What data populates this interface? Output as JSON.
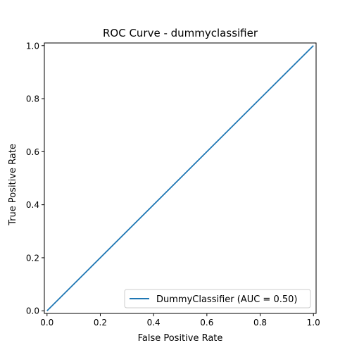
{
  "colors": {
    "background": "#ffffff",
    "axis": "#000000",
    "series": "#1f77b4",
    "legend_border": "#cccccc"
  },
  "chart_data": {
    "type": "line",
    "title": "ROC Curve - dummyclassifier",
    "xlabel": "False Positive Rate",
    "ylabel": "True Positive Rate",
    "xlim": [
      -0.01,
      1.01
    ],
    "ylim": [
      -0.01,
      1.01
    ],
    "x_ticks": [
      0.0,
      0.2,
      0.4,
      0.6,
      0.8,
      1.0
    ],
    "y_ticks": [
      0.0,
      0.2,
      0.4,
      0.6,
      0.8,
      1.0
    ],
    "x_tick_labels": [
      "0.0",
      "0.2",
      "0.4",
      "0.6",
      "0.8",
      "1.0"
    ],
    "y_tick_labels": [
      "0.0",
      "0.2",
      "0.4",
      "0.6",
      "0.8",
      "1.0"
    ],
    "grid": false,
    "legend_position": "lower-right",
    "series": [
      {
        "name": "DummyClassifier (AUC = 0.50)",
        "x": [
          0.0,
          1.0
        ],
        "y": [
          0.0,
          1.0
        ]
      }
    ]
  }
}
